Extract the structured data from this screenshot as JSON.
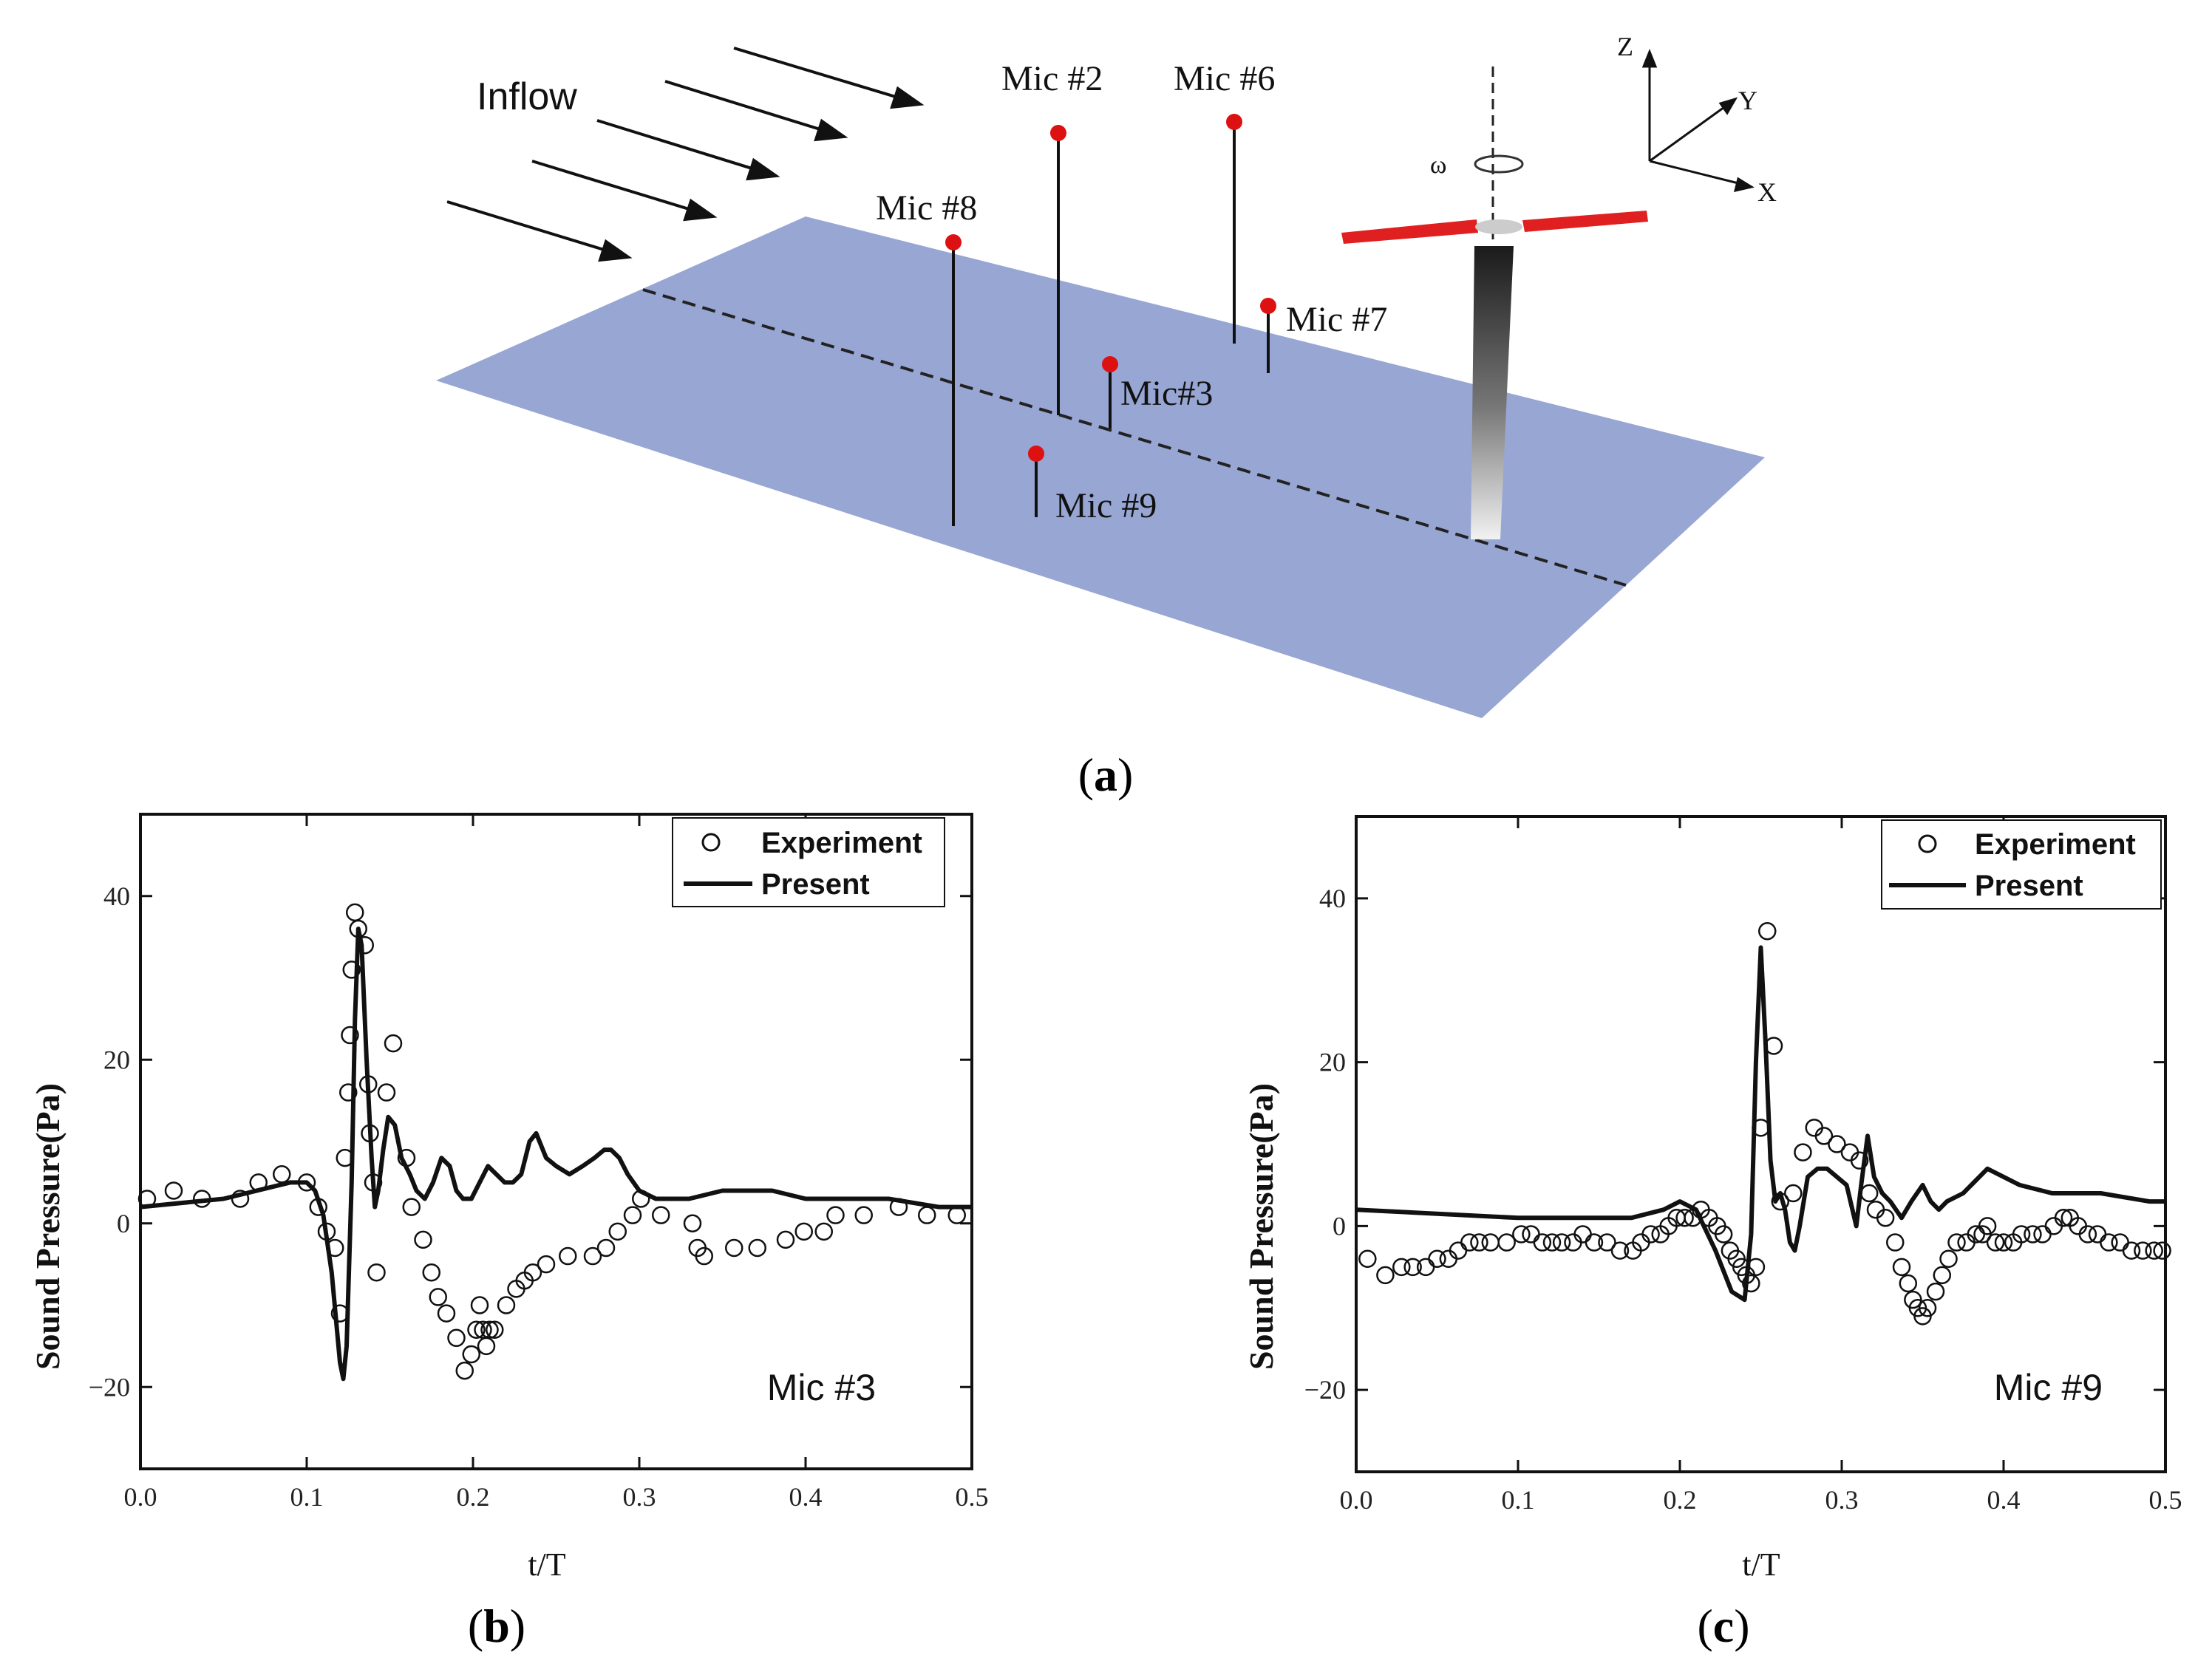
{
  "colors": {
    "ground_plane": "#98a6d3",
    "mic_marker": "#dd1111",
    "rotor_blade": "#e02020",
    "line": "#111111",
    "background": "#ffffff"
  },
  "diagram": {
    "inflow_label": "Inflow",
    "microphones": [
      {
        "id": "mic2",
        "label": "Mic #2"
      },
      {
        "id": "mic6",
        "label": "Mic #6"
      },
      {
        "id": "mic8",
        "label": "Mic #8"
      },
      {
        "id": "mic7",
        "label": "Mic #7"
      },
      {
        "id": "mic3",
        "label": "Mic#3"
      },
      {
        "id": "mic9",
        "label": "Mic #9"
      }
    ],
    "axes": {
      "z": "Z",
      "y": "Y",
      "x": "X"
    },
    "omega": "ω",
    "caption": {
      "open": "(",
      "letter": "a",
      "close": ")"
    }
  },
  "chart_data": [
    {
      "type": "line",
      "panel": "b",
      "caption": {
        "open": "(",
        "letter": "b",
        "close": ")"
      },
      "annotation": "Mic #3",
      "xlabel": "t/T",
      "ylabel": "Sound Pressure(Pa)",
      "xlim": [
        0.0,
        0.5
      ],
      "ylim": [
        -30,
        50
      ],
      "xticks": [
        0.0,
        0.1,
        0.2,
        0.3,
        0.4,
        0.5
      ],
      "xtick_labels": [
        "0.0",
        "0.1",
        "0.2",
        "0.3",
        "0.4",
        "0.5"
      ],
      "yticks": [
        -20,
        0,
        20,
        40
      ],
      "ytick_labels": [
        "−20",
        "0",
        "20",
        "40"
      ],
      "legend": {
        "position": "top-right",
        "entries": [
          "Experiment",
          "Present"
        ]
      },
      "series": [
        {
          "name": "Experiment",
          "style": "open-circle",
          "x": [
            0.004,
            0.02,
            0.037,
            0.06,
            0.071,
            0.085,
            0.1,
            0.107,
            0.112,
            0.117,
            0.12,
            0.123,
            0.125,
            0.126,
            0.127,
            0.129,
            0.131,
            0.135,
            0.137,
            0.138,
            0.14,
            0.142,
            0.148,
            0.152,
            0.16,
            0.163,
            0.17,
            0.175,
            0.179,
            0.184,
            0.19,
            0.195,
            0.199,
            0.202,
            0.204,
            0.206,
            0.208,
            0.21,
            0.213,
            0.22,
            0.226,
            0.231,
            0.236,
            0.244,
            0.257,
            0.272,
            0.28,
            0.287,
            0.296,
            0.301,
            0.313,
            0.332,
            0.335,
            0.339,
            0.357,
            0.371,
            0.388,
            0.399,
            0.411,
            0.418,
            0.435,
            0.456,
            0.473,
            0.491
          ],
          "y": [
            3,
            4,
            3,
            3,
            5,
            6,
            5,
            2,
            -1,
            -3,
            -11,
            8,
            16,
            23,
            31,
            38,
            36,
            34,
            17,
            11,
            5,
            -6,
            16,
            22,
            8,
            2,
            -2,
            -6,
            -9,
            -11,
            -14,
            -18,
            -16,
            -13,
            -10,
            -13,
            -15,
            -13,
            -13,
            -10,
            -8,
            -7,
            -6,
            -5,
            -4,
            -4,
            -3,
            -1,
            1,
            3,
            1,
            0,
            -3,
            -4,
            -3,
            -3,
            -2,
            -1,
            -1,
            1,
            1,
            2,
            1,
            1
          ]
        },
        {
          "name": "Present",
          "style": "solid-line",
          "x": [
            0.0,
            0.05,
            0.09,
            0.1,
            0.105,
            0.11,
            0.115,
            0.12,
            0.122,
            0.124,
            0.127,
            0.129,
            0.131,
            0.133,
            0.136,
            0.139,
            0.141,
            0.143,
            0.146,
            0.149,
            0.153,
            0.157,
            0.162,
            0.166,
            0.171,
            0.176,
            0.181,
            0.186,
            0.19,
            0.194,
            0.199,
            0.204,
            0.209,
            0.214,
            0.219,
            0.224,
            0.229,
            0.234,
            0.238,
            0.244,
            0.25,
            0.258,
            0.266,
            0.273,
            0.279,
            0.283,
            0.288,
            0.293,
            0.3,
            0.31,
            0.33,
            0.35,
            0.36,
            0.37,
            0.38,
            0.4,
            0.42,
            0.45,
            0.48,
            0.5
          ],
          "y": [
            2,
            3,
            5,
            5,
            4,
            1,
            -6,
            -17,
            -19,
            -15,
            5,
            25,
            36,
            34,
            20,
            8,
            2,
            4,
            9,
            13,
            12,
            8,
            6,
            4,
            3,
            5,
            8,
            7,
            4,
            3,
            3,
            5,
            7,
            6,
            5,
            5,
            6,
            10,
            11,
            8,
            7,
            6,
            7,
            8,
            9,
            9,
            8,
            6,
            4,
            3,
            3,
            4,
            4,
            4,
            4,
            3,
            3,
            3,
            2,
            2
          ]
        }
      ]
    },
    {
      "type": "line",
      "panel": "c",
      "caption": {
        "open": "(",
        "letter": "c",
        "close": ")"
      },
      "annotation": "Mic #9",
      "xlabel": "t/T",
      "ylabel": "Sound Pressure(Pa)",
      "xlim": [
        0.0,
        0.5
      ],
      "ylim": [
        -30,
        50
      ],
      "xticks": [
        0.0,
        0.1,
        0.2,
        0.3,
        0.4,
        0.5
      ],
      "xtick_labels": [
        "0.0",
        "0.1",
        "0.2",
        "0.3",
        "0.4",
        "0.5"
      ],
      "yticks": [
        -20,
        0,
        20,
        40
      ],
      "ytick_labels": [
        "−20",
        "0",
        "20",
        "40"
      ],
      "legend": {
        "position": "top-right",
        "entries": [
          "Experiment",
          "Present"
        ]
      },
      "series": [
        {
          "name": "Experiment",
          "style": "open-circle",
          "x": [
            0.007,
            0.018,
            0.028,
            0.035,
            0.043,
            0.05,
            0.057,
            0.063,
            0.07,
            0.076,
            0.083,
            0.093,
            0.102,
            0.108,
            0.115,
            0.121,
            0.127,
            0.134,
            0.14,
            0.147,
            0.155,
            0.163,
            0.171,
            0.176,
            0.182,
            0.188,
            0.193,
            0.198,
            0.203,
            0.208,
            0.213,
            0.218,
            0.223,
            0.227,
            0.231,
            0.235,
            0.238,
            0.241,
            0.244,
            0.247,
            0.25,
            0.254,
            0.258,
            0.262,
            0.27,
            0.276,
            0.283,
            0.289,
            0.297,
            0.305,
            0.311,
            0.317,
            0.321,
            0.327,
            0.333,
            0.337,
            0.341,
            0.344,
            0.347,
            0.35,
            0.353,
            0.358,
            0.362,
            0.366,
            0.371,
            0.377,
            0.383,
            0.387,
            0.39,
            0.395,
            0.4,
            0.406,
            0.411,
            0.418,
            0.424,
            0.431,
            0.437,
            0.441,
            0.446,
            0.452,
            0.458,
            0.465,
            0.472,
            0.479,
            0.486,
            0.493,
            0.498
          ],
          "y": [
            -4,
            -6,
            -5,
            -5,
            -5,
            -4,
            -4,
            -3,
            -2,
            -2,
            -2,
            -2,
            -1,
            -1,
            -2,
            -2,
            -2,
            -2,
            -1,
            -2,
            -2,
            -3,
            -3,
            -2,
            -1,
            -1,
            0,
            1,
            1,
            1,
            2,
            1,
            0,
            -1,
            -3,
            -4,
            -5,
            -6,
            -7,
            -5,
            12,
            36,
            22,
            3,
            4,
            9,
            12,
            11,
            10,
            9,
            8,
            4,
            2,
            1,
            -2,
            -5,
            -7,
            -9,
            -10,
            -11,
            -10,
            -8,
            -6,
            -4,
            -2,
            -2,
            -1,
            -1,
            0,
            -2,
            -2,
            -2,
            -1,
            -1,
            -1,
            0,
            1,
            1,
            0,
            -1,
            -1,
            -2,
            -2,
            -3,
            -3,
            -3,
            -3
          ]
        },
        {
          "name": "Present",
          "style": "solid-line",
          "x": [
            0.0,
            0.1,
            0.17,
            0.19,
            0.2,
            0.21,
            0.222,
            0.232,
            0.24,
            0.244,
            0.247,
            0.25,
            0.253,
            0.256,
            0.259,
            0.262,
            0.265,
            0.268,
            0.271,
            0.274,
            0.279,
            0.285,
            0.291,
            0.297,
            0.303,
            0.309,
            0.312,
            0.316,
            0.32,
            0.325,
            0.33,
            0.337,
            0.343,
            0.35,
            0.355,
            0.36,
            0.365,
            0.375,
            0.39,
            0.41,
            0.43,
            0.46,
            0.49,
            0.5
          ],
          "y": [
            2,
            1,
            1,
            2,
            3,
            2,
            -3,
            -8,
            -9,
            -1,
            20,
            34,
            22,
            8,
            3,
            4,
            2,
            -2,
            -3,
            0,
            6,
            7,
            7,
            6,
            5,
            0,
            5,
            11,
            6,
            4,
            3,
            1,
            3,
            5,
            3,
            2,
            3,
            4,
            7,
            5,
            4,
            4,
            3,
            3
          ]
        }
      ]
    }
  ]
}
